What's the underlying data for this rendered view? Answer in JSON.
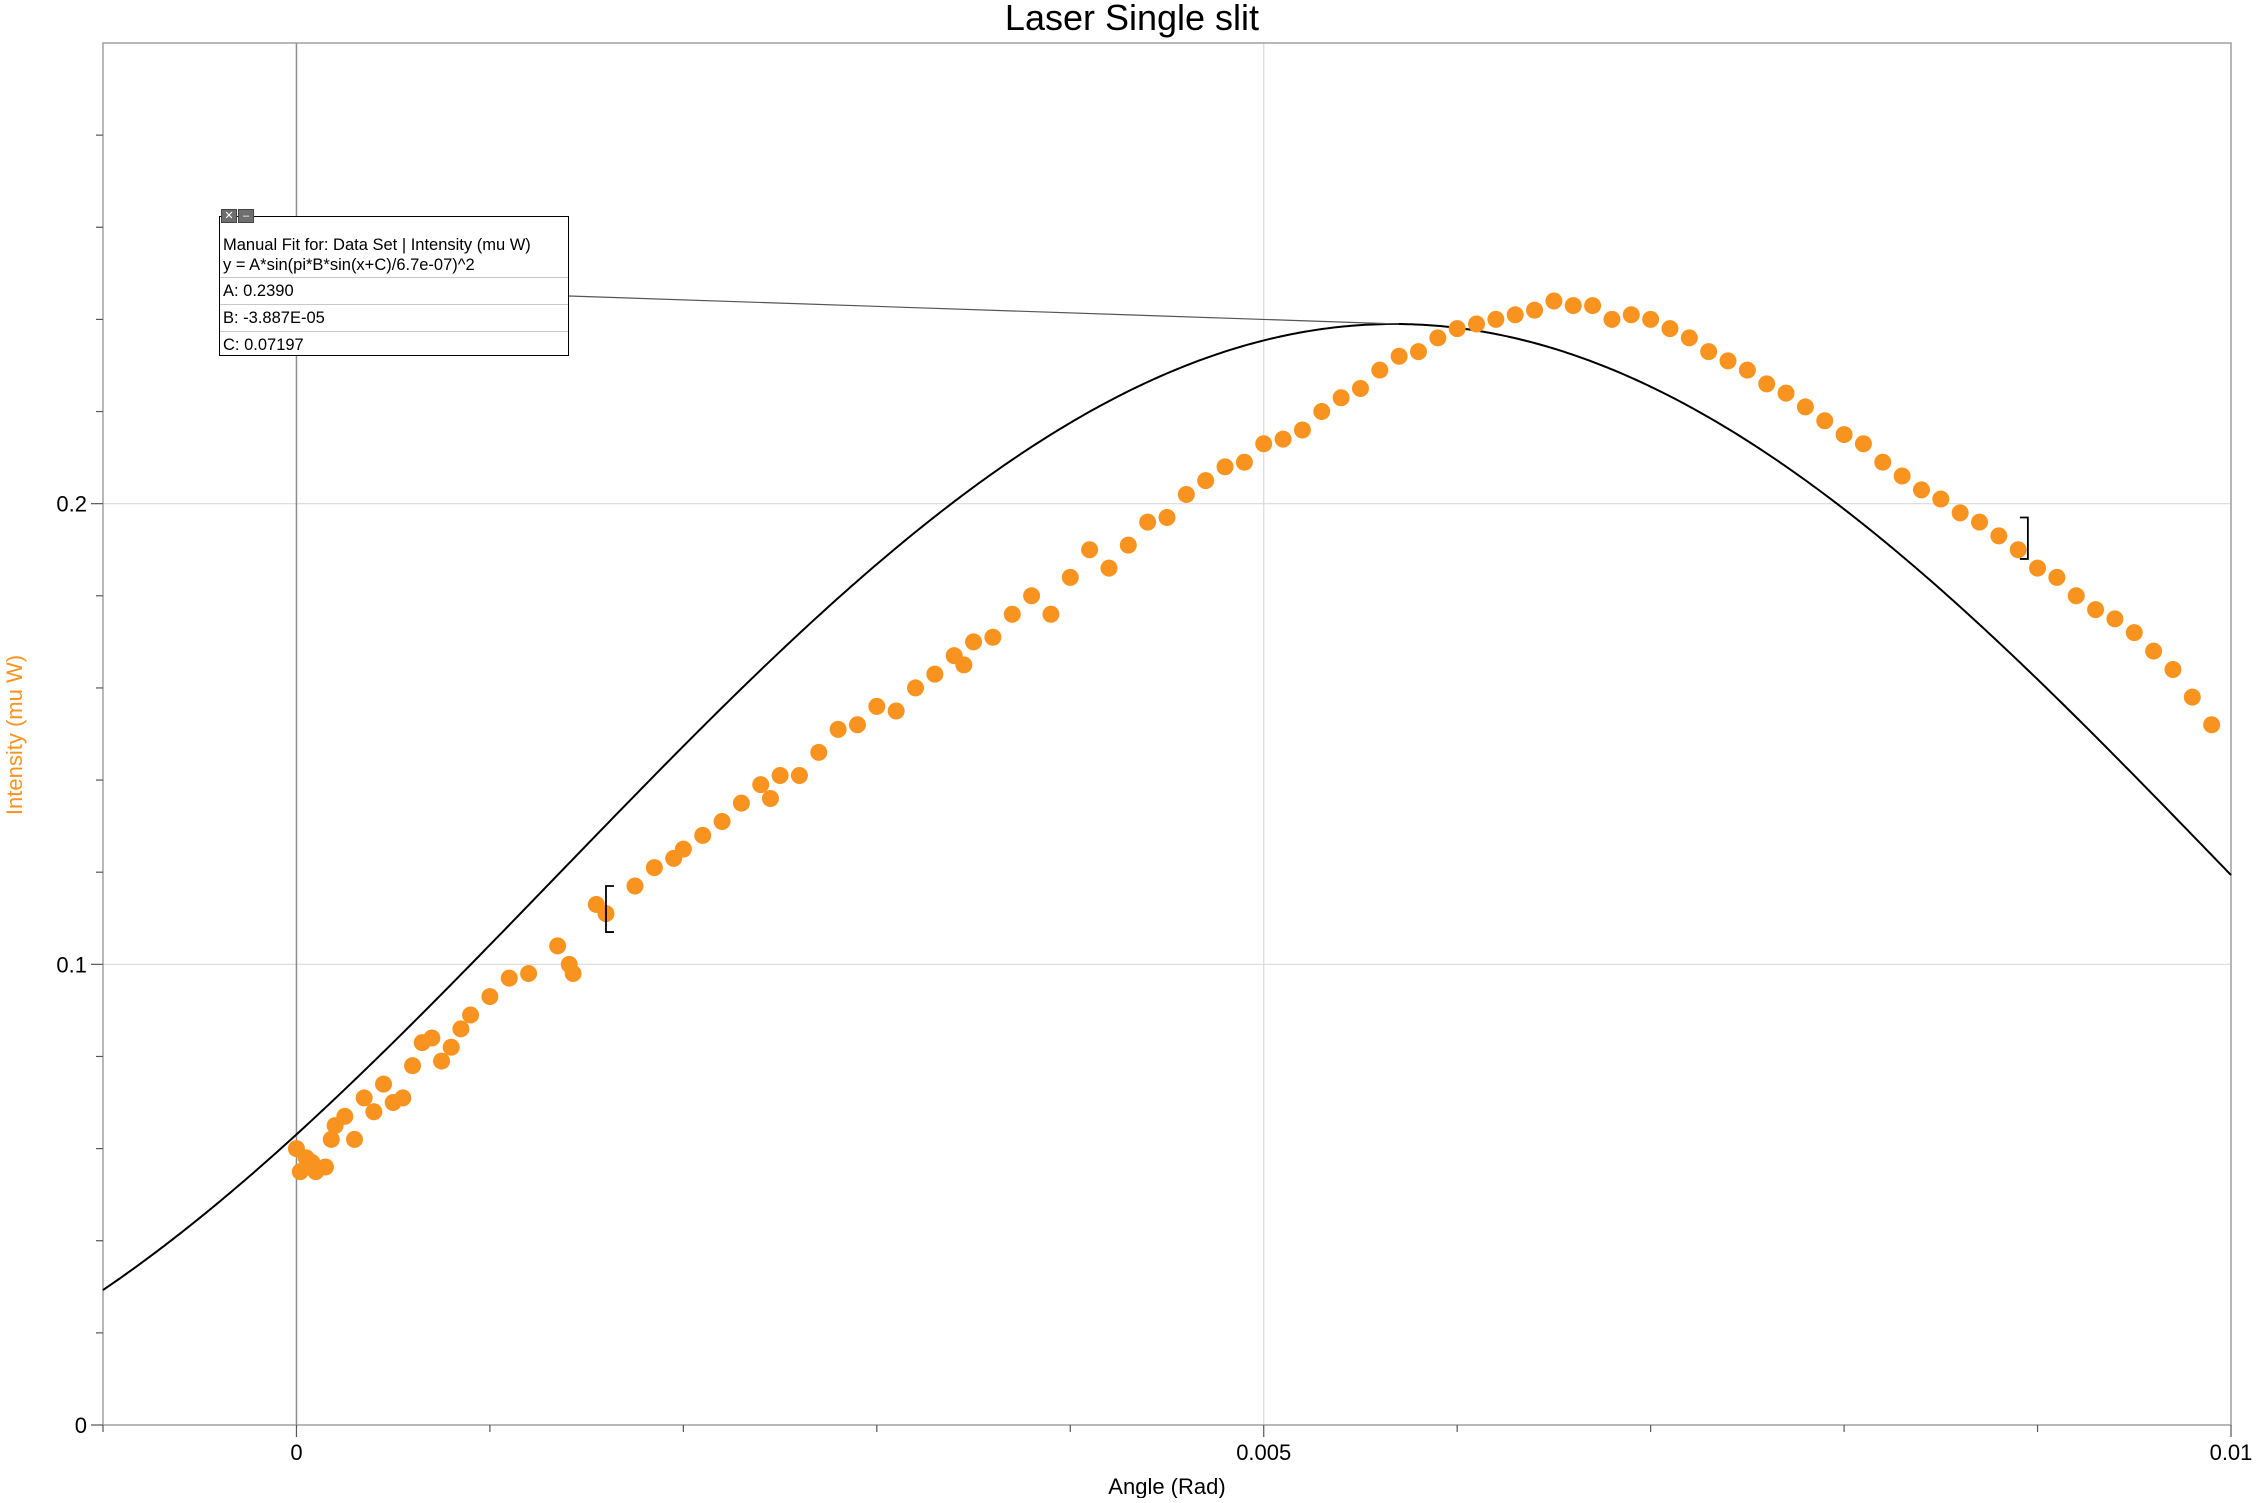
{
  "chart_data": {
    "type": "scatter",
    "title": "Laser Single slit",
    "xlabel": "Angle (Rad)",
    "ylabel": "Intensity (mu W)",
    "xlim": [
      -0.001,
      0.01
    ],
    "ylim": [
      0,
      0.3
    ],
    "x_ticks": [
      0,
      0.005,
      0.01
    ],
    "x_tick_labels": [
      "0",
      "0.005",
      "0.01"
    ],
    "y_ticks": [
      0,
      0.1,
      0.2
    ],
    "y_tick_labels": [
      "0",
      "0.1",
      "0.2"
    ],
    "grid": true,
    "colors": {
      "points": "#f7931e",
      "ylabel": "#f7931e",
      "fit": "#000000",
      "grid": "#d9d9d9"
    },
    "series": [
      {
        "kind": "points",
        "x": [
          0.0,
          2e-05,
          5e-05,
          8e-05,
          0.0001,
          0.00015,
          0.00018,
          0.0002,
          0.00025,
          0.0003,
          0.00035,
          0.0004,
          0.00045,
          0.0005,
          0.00055,
          0.0006,
          0.00065,
          0.0007,
          0.00075,
          0.0008,
          0.00085,
          0.0009,
          0.001,
          0.0011,
          0.0012,
          0.00135,
          0.00141,
          0.00143,
          0.00155,
          0.0016,
          0.00175,
          0.00185,
          0.00195,
          0.002,
          0.0021,
          0.0022,
          0.0023,
          0.0024,
          0.00245,
          0.0025,
          0.0026,
          0.0027,
          0.0028,
          0.0029,
          0.003,
          0.0031,
          0.0032,
          0.0033,
          0.0034,
          0.00345,
          0.0035,
          0.0036,
          0.0037,
          0.0038,
          0.0039,
          0.004,
          0.0041,
          0.0042,
          0.0043,
          0.0044,
          0.0045,
          0.0046,
          0.0047,
          0.0048,
          0.0049,
          0.005,
          0.0051,
          0.0052,
          0.0053,
          0.0054,
          0.0055,
          0.0056,
          0.0057,
          0.0058,
          0.0059,
          0.006,
          0.0061,
          0.0062,
          0.0063,
          0.0064,
          0.0065,
          0.0066,
          0.0067,
          0.0068,
          0.0069,
          0.007,
          0.0071,
          0.0072,
          0.0073,
          0.0074,
          0.0075,
          0.0076,
          0.0077,
          0.0078,
          0.0079,
          0.008,
          0.0081,
          0.0082,
          0.0083,
          0.0084,
          0.0085,
          0.0086,
          0.0087,
          0.0088,
          0.0089,
          0.009,
          0.0091,
          0.0092,
          0.0093,
          0.0094,
          0.0095,
          0.0096,
          0.0097,
          0.0098,
          0.0099
        ],
        "y": [
          0.06,
          0.055,
          0.058,
          0.057,
          0.055,
          0.056,
          0.062,
          0.065,
          0.067,
          0.062,
          0.071,
          0.068,
          0.074,
          0.07,
          0.071,
          0.078,
          0.083,
          0.084,
          0.079,
          0.082,
          0.086,
          0.089,
          0.093,
          0.097,
          0.098,
          0.104,
          0.1,
          0.098,
          0.113,
          0.111,
          0.117,
          0.121,
          0.123,
          0.125,
          0.128,
          0.131,
          0.135,
          0.139,
          0.136,
          0.141,
          0.141,
          0.146,
          0.151,
          0.152,
          0.156,
          0.155,
          0.16,
          0.163,
          0.167,
          0.165,
          0.17,
          0.171,
          0.176,
          0.18,
          0.176,
          0.184,
          0.19,
          0.186,
          0.191,
          0.196,
          0.197,
          0.202,
          0.205,
          0.208,
          0.209,
          0.213,
          0.214,
          0.216,
          0.22,
          0.223,
          0.225,
          0.229,
          0.232,
          0.233,
          0.236,
          0.238,
          0.239,
          0.24,
          0.241,
          0.242,
          0.244,
          0.243,
          0.243,
          0.24,
          0.241,
          0.24,
          0.238,
          0.236,
          0.233,
          0.231,
          0.229,
          0.226,
          0.224,
          0.221,
          0.218,
          0.215,
          0.213,
          0.209,
          0.206,
          0.203,
          0.201,
          0.198,
          0.196,
          0.193,
          0.19,
          0.186,
          0.184,
          0.18,
          0.177,
          0.175,
          0.172,
          0.168,
          0.164,
          0.158,
          0.152
        ]
      },
      {
        "kind": "fit-curve",
        "equation": "y = A*sin(pi*B*sin(x+C)/6.7e-07)^2",
        "params": {
          "A": 0.239,
          "B": -3.887e-05,
          "C": 0.07197
        }
      }
    ],
    "annotation": {
      "header": "Manual Fit for: Data Set | Intensity (mu W)",
      "equation": "y = A*sin(pi*B*sin(x+C)/6.7e-07)^2",
      "param_a": "A: 0.2390",
      "param_b": "B: -3.887E-05",
      "param_c": "C: 0.07197",
      "leader_target_x": 0.0057,
      "leader_target_y": 0.239
    },
    "range_brackets": [
      {
        "side": "left",
        "x": 0.0016,
        "y": [
          0.107,
          0.117
        ]
      },
      {
        "side": "right",
        "x": 0.00895,
        "y": [
          0.188,
          0.197
        ]
      }
    ]
  },
  "fit_box": {
    "close_icon": "close-icon",
    "minimize_icon": "minimize-icon"
  }
}
